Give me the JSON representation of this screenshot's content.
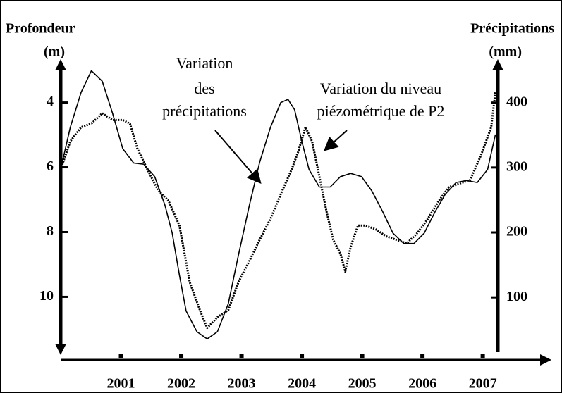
{
  "chart_data": {
    "type": "line",
    "y_label": [
      "Profondeur",
      "(m)"
    ],
    "y2_label": [
      "Précipitations",
      "(mm)"
    ],
    "annotations": [
      [
        "Variation",
        "des",
        "précipitations"
      ],
      [
        "Variation du niveau",
        "piézométrique de P2"
      ]
    ],
    "xlim": [
      2000,
      2007.25
    ],
    "xticks": [
      2001,
      2002,
      2003,
      2004,
      2005,
      2006,
      2007
    ],
    "ylim": [
      2.9,
      11.6
    ],
    "y_inverted": true,
    "yticks": [
      4,
      6,
      8,
      10
    ],
    "y2lim": [
      21,
      455
    ],
    "y2ticks": [
      100,
      200,
      300,
      400
    ],
    "series": [
      {
        "color": "#000000",
        "style": "solid",
        "axis": "y2",
        "x": [
          2000.0,
          2000.16,
          2000.34,
          2000.51,
          2000.69,
          2000.86,
          2001.03,
          2001.21,
          2001.38,
          2001.56,
          2001.73,
          2001.85,
          2001.97,
          2002.08,
          2002.26,
          2002.43,
          2002.6,
          2002.78,
          2002.95,
          2003.13,
          2003.3,
          2003.48,
          2003.65,
          2003.77,
          2003.88,
          2004.0,
          2004.12,
          2004.29,
          2004.47,
          2004.64,
          2004.81,
          2004.99,
          2005.16,
          2005.34,
          2005.51,
          2005.69,
          2005.86,
          2006.03,
          2006.21,
          2006.38,
          2006.56,
          2006.73,
          2006.91,
          2007.08,
          2007.21
        ],
        "values": [
          297,
          362,
          416,
          449,
          433,
          384,
          329,
          307,
          305,
          286,
          242,
          199,
          134,
          79,
          47,
          36,
          47,
          90,
          166,
          242,
          308,
          362,
          400,
          405,
          389,
          340,
          297,
          270,
          270,
          286,
          291,
          286,
          264,
          232,
          199,
          183,
          183,
          199,
          232,
          259,
          277,
          280,
          277,
          297,
          351
        ]
      },
      {
        "color": "#000000",
        "style": "dotted",
        "axis": "y",
        "x": [
          2000.0,
          2000.16,
          2000.34,
          2000.51,
          2000.69,
          2000.86,
          2001.03,
          2001.15,
          2001.27,
          2001.44,
          2001.62,
          2001.79,
          2001.97,
          2002.14,
          2002.31,
          2002.43,
          2002.6,
          2002.78,
          2002.95,
          2003.13,
          2003.3,
          2003.48,
          2003.65,
          2003.83,
          2003.94,
          2004.06,
          2004.17,
          2004.29,
          2004.41,
          2004.52,
          2004.64,
          2004.72,
          2004.81,
          2004.93,
          2005.05,
          2005.22,
          2005.4,
          2005.57,
          2005.74,
          2005.92,
          2006.09,
          2006.27,
          2006.44,
          2006.62,
          2006.79,
          2006.97,
          2007.14,
          2007.21
        ],
        "values": [
          6.07,
          5.2,
          4.76,
          4.65,
          4.33,
          4.54,
          4.54,
          4.65,
          5.41,
          6.07,
          6.72,
          7.04,
          7.8,
          9.54,
          10.41,
          10.96,
          10.63,
          10.41,
          9.54,
          8.89,
          8.24,
          7.59,
          6.83,
          6.07,
          5.52,
          4.76,
          5.2,
          6.28,
          7.37,
          8.24,
          8.67,
          9.22,
          8.46,
          7.8,
          7.8,
          7.91,
          8.13,
          8.24,
          8.35,
          8.02,
          7.59,
          7.04,
          6.61,
          6.5,
          6.39,
          5.63,
          4.76,
          3.67
        ]
      }
    ]
  }
}
